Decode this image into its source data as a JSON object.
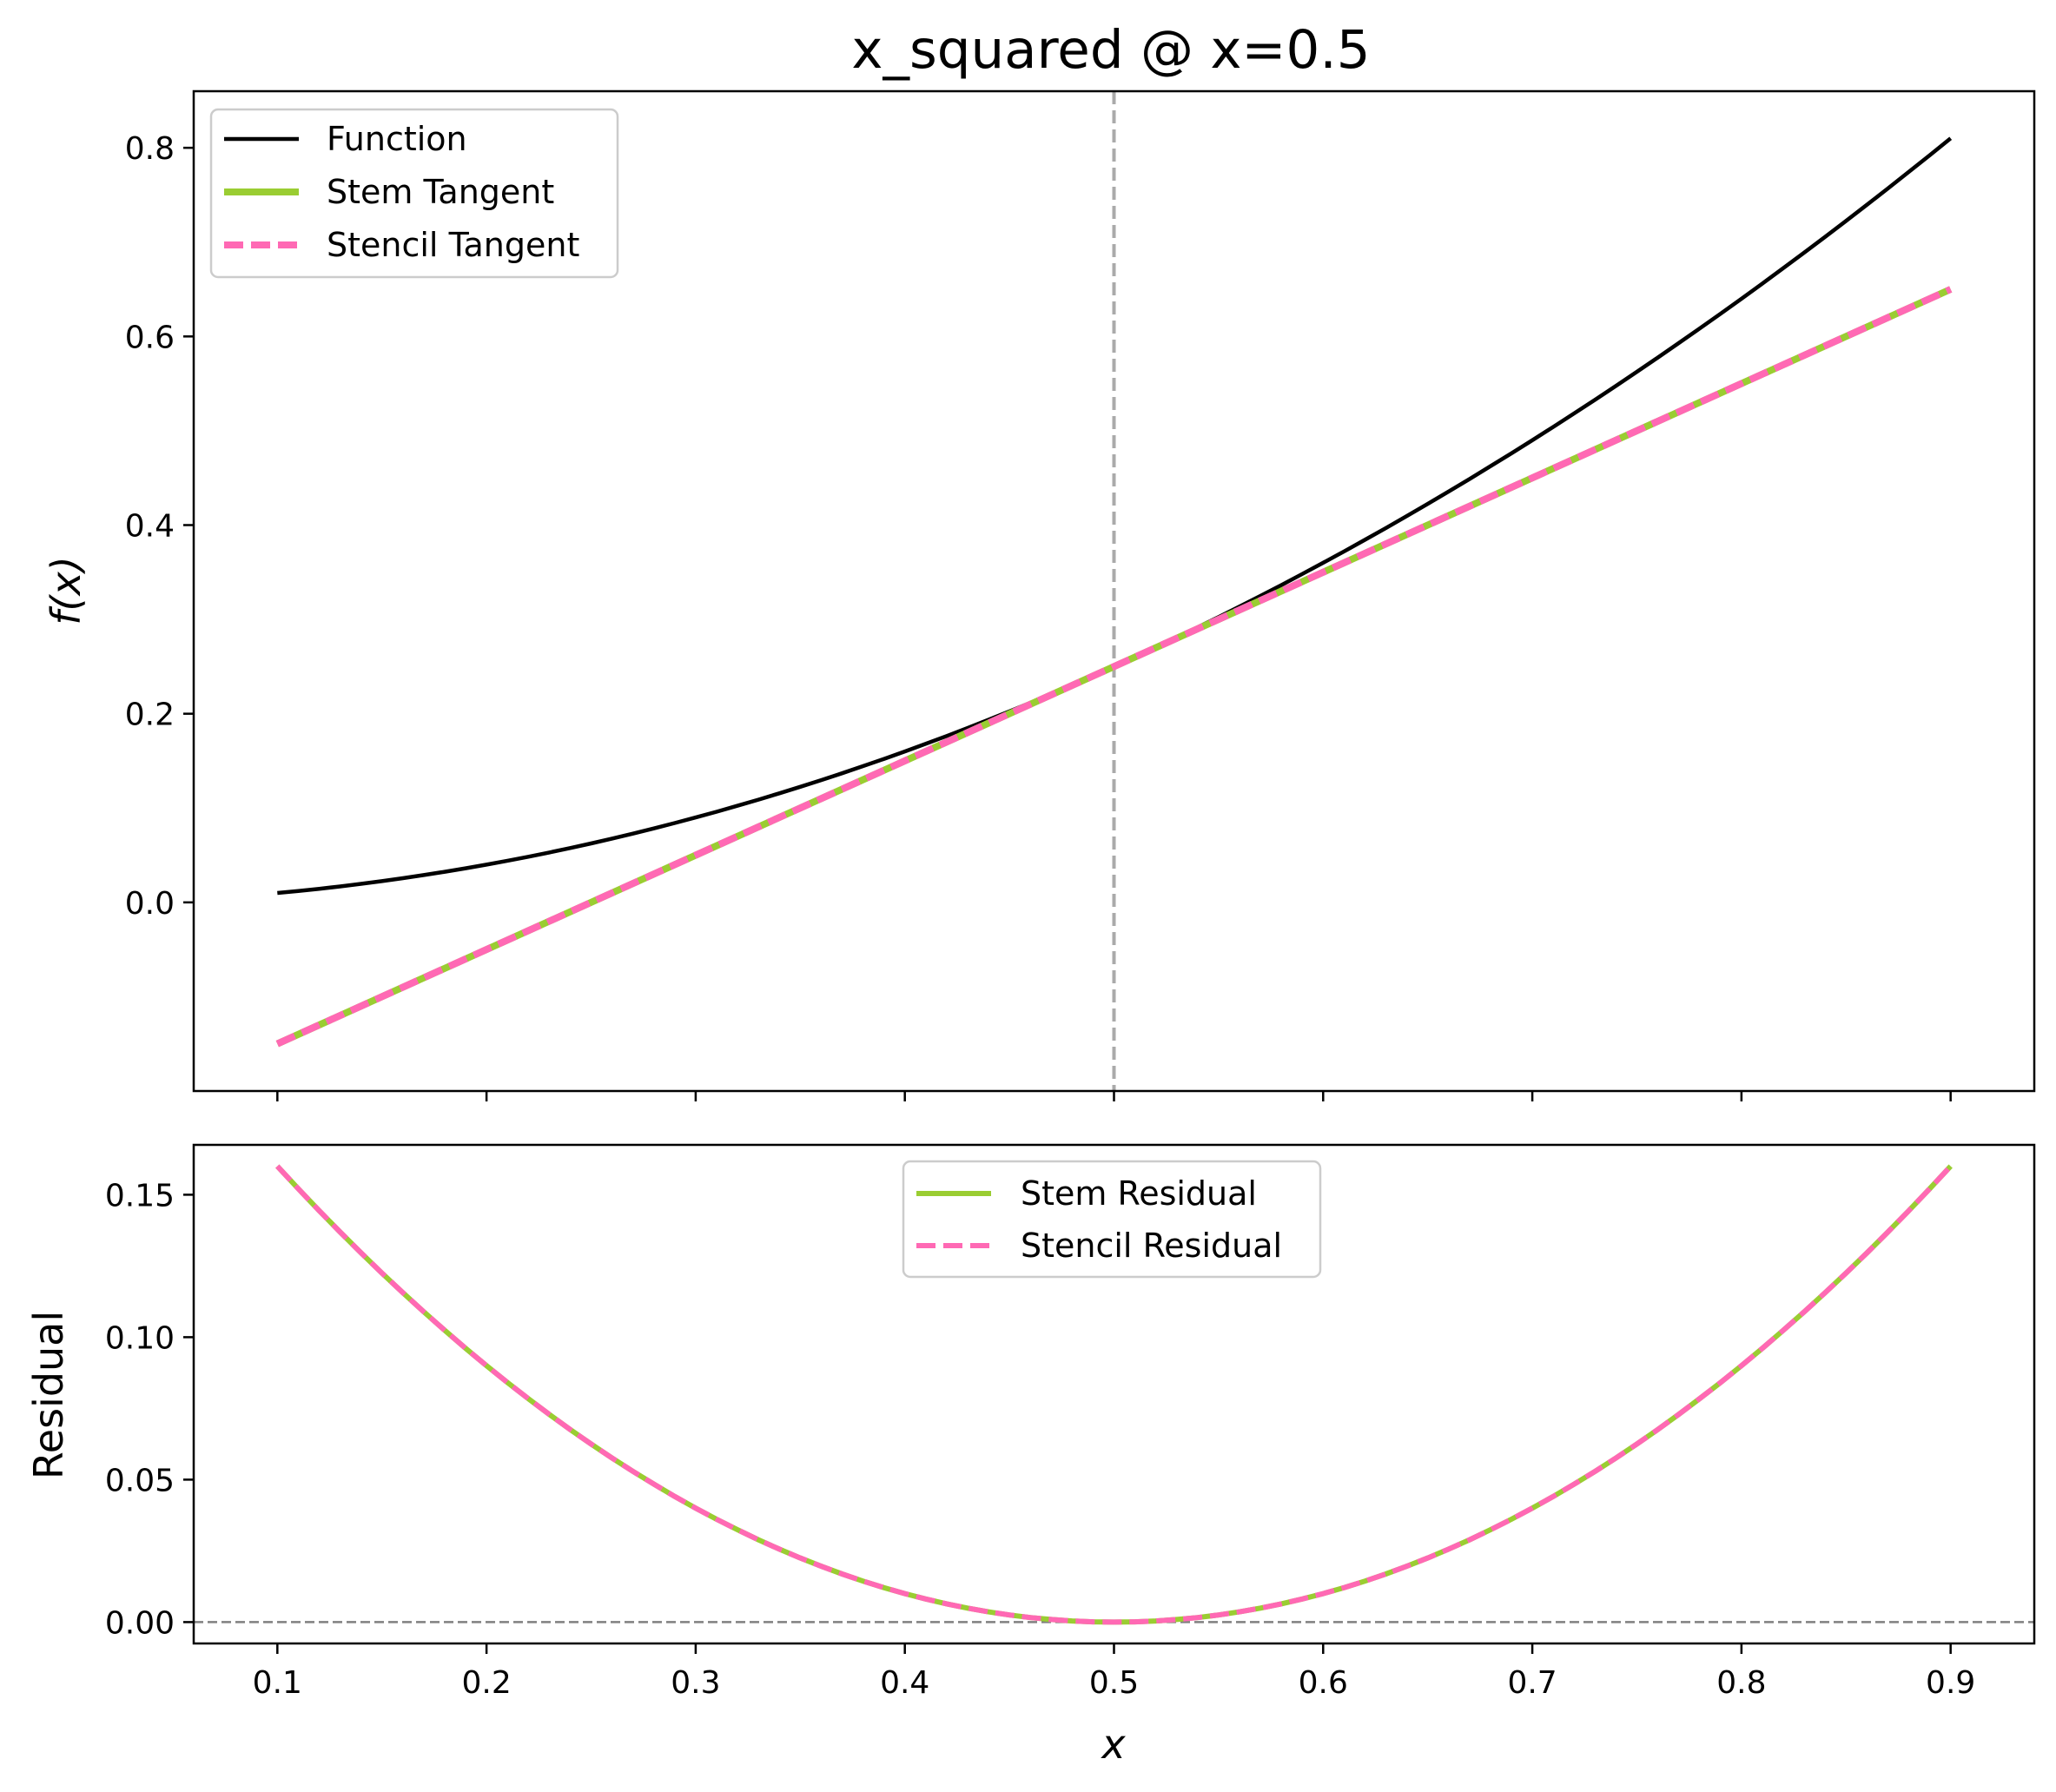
{
  "chart_data": [
    {
      "type": "line",
      "title": "x_squared @ x=0.5",
      "xlabel": "",
      "ylabel": "f(x)",
      "xlim": [
        0.06,
        0.94
      ],
      "ylim": [
        -0.2,
        0.86
      ],
      "yticks": [
        "0.0",
        "0.2",
        "0.4",
        "0.6",
        "0.8"
      ],
      "ytick_values": [
        0.0,
        0.2,
        0.4,
        0.6,
        0.8
      ],
      "xtick_values": [
        0.1,
        0.2,
        0.3,
        0.4,
        0.5,
        0.6,
        0.7,
        0.8,
        0.9
      ],
      "xtick_labels_shown": false,
      "vline": {
        "x": 0.5,
        "color": "#aaaaaa",
        "style": "dashed"
      },
      "legend_position": "top-left",
      "series": [
        {
          "name": "Function",
          "color": "#000000",
          "style": "solid",
          "x": [
            0.1,
            0.2,
            0.3,
            0.4,
            0.5,
            0.6,
            0.7,
            0.8,
            0.9
          ],
          "y": [
            0.01,
            0.04,
            0.09,
            0.16,
            0.25,
            0.36,
            0.49,
            0.64,
            0.81
          ]
        },
        {
          "name": "Stem Tangent",
          "color": "#9acd32",
          "style": "solid",
          "x": [
            0.1,
            0.9
          ],
          "y": [
            -0.15,
            0.65
          ]
        },
        {
          "name": "Stencil Tangent",
          "color": "#ff69b4",
          "style": "dashed",
          "x": [
            0.1,
            0.9
          ],
          "y": [
            -0.15,
            0.65
          ]
        }
      ]
    },
    {
      "type": "line",
      "title": "",
      "xlabel": "x",
      "ylabel": "Residual",
      "xlim": [
        0.06,
        0.94
      ],
      "ylim": [
        -0.0075,
        0.1675
      ],
      "xticks": [
        "0.1",
        "0.2",
        "0.3",
        "0.4",
        "0.5",
        "0.6",
        "0.7",
        "0.8",
        "0.9"
      ],
      "xtick_values": [
        0.1,
        0.2,
        0.3,
        0.4,
        0.5,
        0.6,
        0.7,
        0.8,
        0.9
      ],
      "yticks": [
        "0.00",
        "0.05",
        "0.10",
        "0.15"
      ],
      "ytick_values": [
        0.0,
        0.05,
        0.1,
        0.15
      ],
      "hline": {
        "y": 0.0,
        "color": "#808080",
        "style": "dashed"
      },
      "legend_position": "top-center",
      "series": [
        {
          "name": "Stem Residual",
          "color": "#9acd32",
          "style": "solid",
          "x": [
            0.1,
            0.2,
            0.3,
            0.4,
            0.5,
            0.6,
            0.7,
            0.8,
            0.9
          ],
          "y": [
            0.16,
            0.09,
            0.04,
            0.01,
            0.0,
            0.01,
            0.04,
            0.09,
            0.16
          ]
        },
        {
          "name": "Stencil Residual",
          "color": "#ff69b4",
          "style": "dashed",
          "x": [
            0.1,
            0.2,
            0.3,
            0.4,
            0.5,
            0.6,
            0.7,
            0.8,
            0.9
          ],
          "y": [
            0.16,
            0.09,
            0.04,
            0.01,
            0.0,
            0.01,
            0.04,
            0.09,
            0.16
          ]
        }
      ]
    }
  ]
}
